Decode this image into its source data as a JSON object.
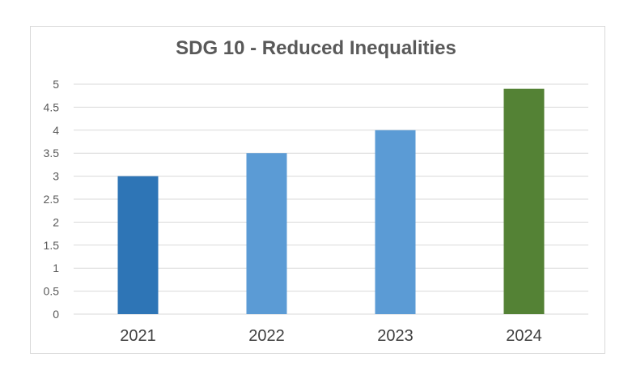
{
  "chart_data": {
    "type": "bar",
    "title": "SDG 10 - Reduced Inequalities",
    "xlabel": "",
    "ylabel": "",
    "categories": [
      "2021",
      "2022",
      "2023",
      "2024"
    ],
    "values": [
      3,
      3.5,
      4,
      4.9
    ],
    "bar_colors": [
      "#2e75b6",
      "#5b9bd5",
      "#5b9bd5",
      "#548235"
    ],
    "ylim": [
      0,
      5
    ],
    "yticks": [
      "0",
      "0.5",
      "1",
      "1.5",
      "2",
      "2.5",
      "3",
      "3.5",
      "4",
      "4.5",
      "5"
    ],
    "grid": true,
    "legend": "none"
  },
  "colors": {
    "gridline": "#d9d9d9",
    "axis": "#d9d9d9",
    "title": "#595959"
  }
}
